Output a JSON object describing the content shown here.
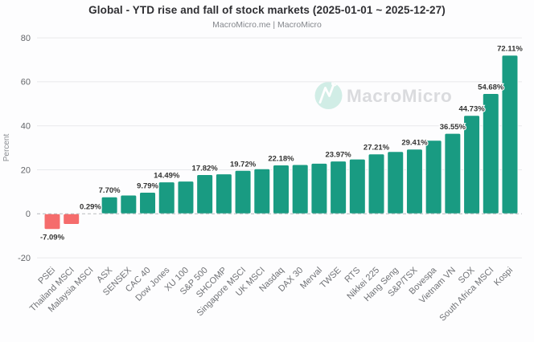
{
  "header": {
    "title": "Global - YTD rise and fall of stock markets (2025-01-01 ~ 2025-12-27)",
    "subtitle": "MacroMicro.me | MacroMicro"
  },
  "watermark": {
    "text": "MacroMicro",
    "icon": "macromicro-logo-icon"
  },
  "chart_data": {
    "type": "bar",
    "title": "Global - YTD rise and fall of stock markets (2025-01-01 ~ 2025-12-27)",
    "subtitle": "MacroMicro.me | MacroMicro",
    "xlabel": "",
    "ylabel": "Percent",
    "ylim": [
      -20,
      80
    ],
    "yticks": [
      80,
      60,
      40,
      20,
      0,
      -20
    ],
    "grid": true,
    "legend": false,
    "zero_line": "dashed",
    "colors": {
      "positive": "#199b82",
      "negative": "#f56c6c"
    },
    "categories": [
      "PSEi",
      "Thailand MSCI",
      "Malaysia MSCI",
      "ASX",
      "SENSEX",
      "CAC 40",
      "Dow Jones",
      "XU 100",
      "S&P 500",
      "SHCOMP",
      "Singapore MSCI",
      "UK MSCI",
      "Nasdaq",
      "DAX 30",
      "Merval",
      "TWSE",
      "RTS",
      "Nikkei 225",
      "Hang Seng",
      "S&P/TSX",
      "Bovespa",
      "Vietnam VN",
      "SOX",
      "South Africa MSCI",
      "Kospi"
    ],
    "values": [
      -7.09,
      -4.8,
      0.29,
      7.7,
      8.5,
      9.79,
      14.49,
      14.85,
      17.82,
      18.15,
      19.72,
      20.45,
      22.18,
      22.35,
      22.95,
      23.97,
      24.9,
      27.21,
      28.3,
      29.41,
      33.4,
      36.55,
      44.73,
      54.68,
      72.11
    ],
    "data_labels": [
      "-7.09%",
      null,
      "0.29%",
      "7.70%",
      null,
      "9.79%",
      "14.49%",
      null,
      "17.82%",
      null,
      "19.72%",
      null,
      "22.18%",
      null,
      null,
      "23.97%",
      null,
      "27.21%",
      null,
      "29.41%",
      null,
      "36.55%",
      "44.73%",
      "54.68%",
      "72.11%"
    ]
  }
}
